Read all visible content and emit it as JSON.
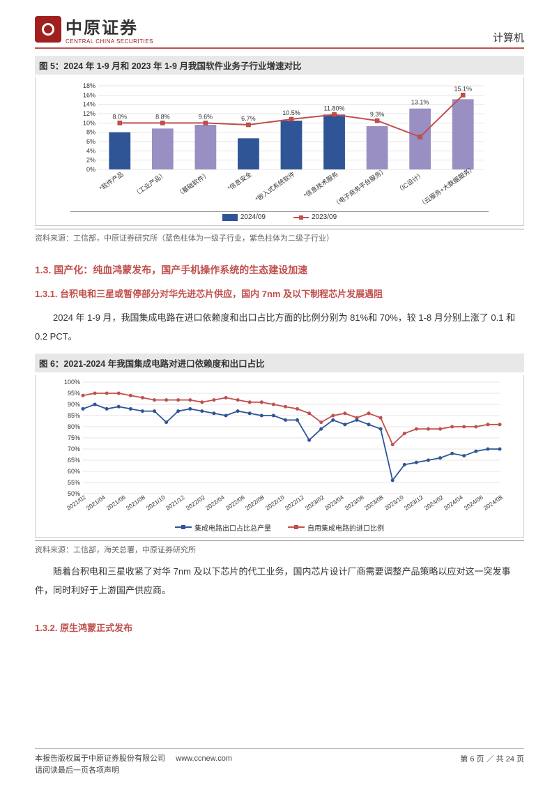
{
  "header": {
    "logo_cn": "中原证券",
    "logo_en": "CENTRAL CHINA SECURITIES",
    "category": "计算机"
  },
  "figure5": {
    "title": "图 5：2024 年 1-9 月和 2023 年 1-9 月我国软件业务子行业增速对比",
    "source": "资料来源：工信部，中原证券研究所（蓝色柱体为一级子行业，紫色柱体为二级子行业）",
    "type": "bar+line",
    "ylim": [
      0,
      18
    ],
    "ytick_step": 2,
    "categories": [
      "*软件产品",
      "（工业产品）",
      "（基础软件）",
      "*信息安全",
      "*嵌入式系统软件",
      "*信息技术服务",
      "（电子商务平台服务）",
      "（IC设计）",
      "（云服务+大数据服务）"
    ],
    "bar_values_2024": [
      8.0,
      8.8,
      9.6,
      6.7,
      10.5,
      11.8,
      9.3,
      13.1,
      15.1
    ],
    "bar_is_primary": [
      true,
      false,
      false,
      true,
      true,
      true,
      false,
      false,
      false
    ],
    "line_values_2023": [
      10.0,
      10.0,
      10.0,
      9.6,
      10.8,
      11.8,
      10.5,
      7.0,
      16.0
    ],
    "data_labels": [
      "8.0%",
      "8.8%",
      "9.6%",
      "6.7%",
      "10.5%",
      "11.80%",
      "9.3%",
      "13.1%",
      "15.1%"
    ],
    "colors": {
      "primary_bar": "#2f5597",
      "secondary_bar": "#9a8fc2",
      "line": "#c0504d",
      "grid": "#cccccc"
    },
    "legend": {
      "bar": "2024/09",
      "line": "2023/09"
    }
  },
  "section_1_3": {
    "heading": "1.3. 国产化：纯血鸿蒙发布，国产手机操作系统的生态建设加速"
  },
  "section_1_3_1": {
    "heading": "1.3.1. 台积电和三星或暂停部分对华先进芯片供应，国内 7nm 及以下制程芯片发展遇阻",
    "para1": "2024 年 1-9 月，我国集成电路在进口依赖度和出口占比方面的比例分别为 81%和 70%，较 1-8 月分别上涨了 0.1 和 0.2 PCT。"
  },
  "figure6": {
    "title": "图 6：2021-2024 年我国集成电路对进口依赖度和出口占比",
    "source": "资料来源：工信部，海关总署，中原证券研究所",
    "type": "line",
    "ylim": [
      50,
      100
    ],
    "ytick_step": 5,
    "x_labels_shown": [
      "2021/02",
      "2021/04",
      "2021/06",
      "2021/08",
      "2021/10",
      "2021/12",
      "2022/02",
      "2022/04",
      "2022/06",
      "2022/08",
      "2022/10",
      "2022/12",
      "2023/02",
      "2023/04",
      "2023/06",
      "2023/08",
      "2023/10",
      "2023/12",
      "2024/02",
      "2024/04",
      "2024/06",
      "2024/08"
    ],
    "series_blue_name": "集成电路出口占比总产量",
    "series_red_name": "自用集成电路的进口比例",
    "series_blue": [
      88,
      90,
      88,
      89,
      88,
      87,
      87,
      82,
      87,
      88,
      87,
      86,
      85,
      87,
      86,
      85,
      85,
      83,
      83,
      74,
      79,
      83,
      81,
      83,
      81,
      79,
      56,
      63,
      64,
      65,
      66,
      68,
      67,
      69,
      70,
      70
    ],
    "series_red": [
      94,
      95,
      95,
      95,
      94,
      93,
      92,
      92,
      92,
      92,
      91,
      92,
      93,
      92,
      91,
      91,
      90,
      89,
      88,
      86,
      82,
      85,
      86,
      84,
      86,
      84,
      72,
      77,
      79,
      79,
      79,
      80,
      80,
      80,
      81,
      81
    ],
    "colors": {
      "blue": "#2f5597",
      "red": "#c0504d",
      "grid": "#cccccc",
      "background": "#ffffff"
    }
  },
  "para_after_fig6": "随着台积电和三星收紧了对华 7nm 及以下芯片的代工业务，国内芯片设计厂商需要调整产品策略以应对这一突发事件，同时利好于上游国产供应商。",
  "section_1_3_2": {
    "heading": "1.3.2. 原生鸿蒙正式发布"
  },
  "footer": {
    "line1": "本报告版权属于中原证券股份有限公司",
    "url": "www.ccnew.com",
    "line2": "请阅读最后一页各项声明",
    "page": "第 6 页 ／ 共 24 页"
  }
}
